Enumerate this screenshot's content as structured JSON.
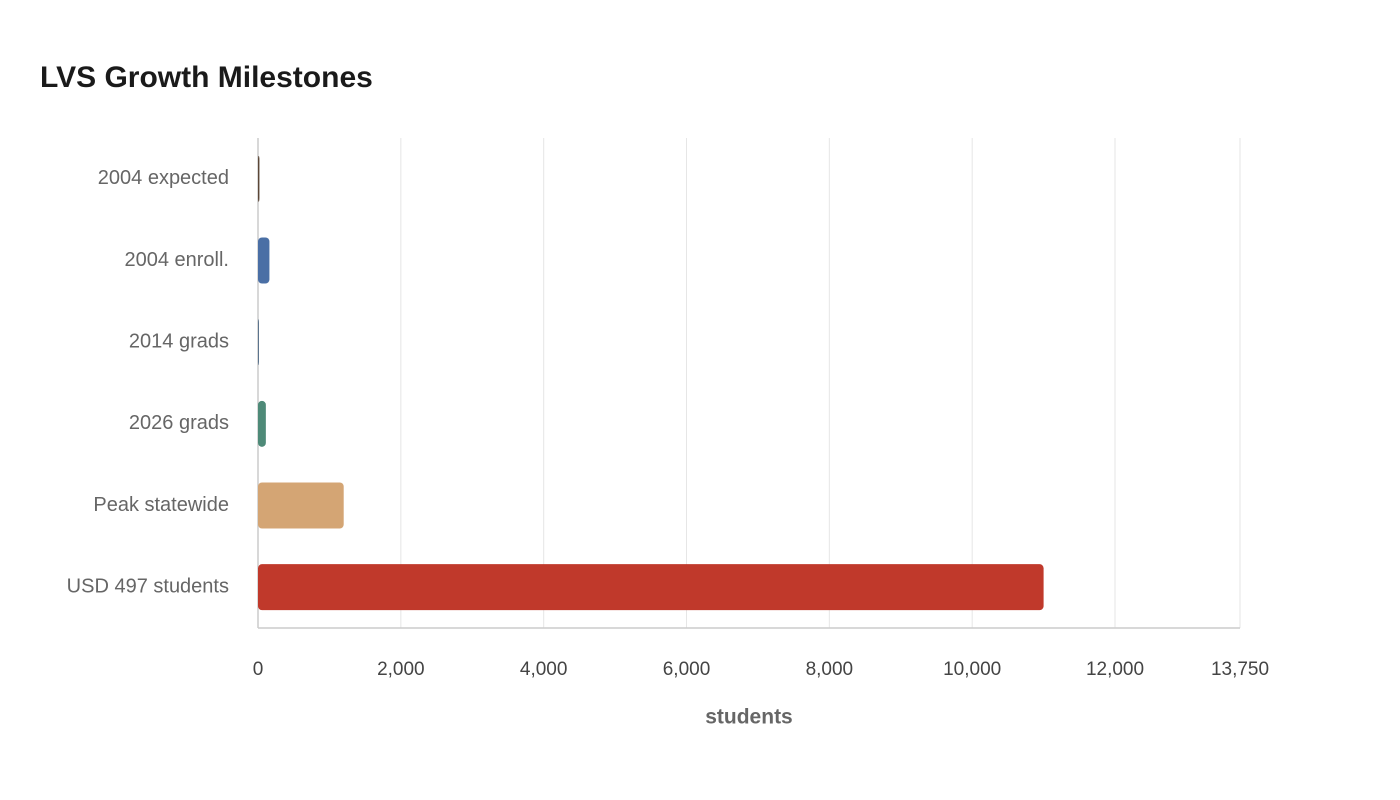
{
  "chart_data": {
    "type": "bar",
    "orientation": "horizontal",
    "title": "LVS Growth Milestones",
    "categories": [
      "2004 expected",
      "2004 enroll.",
      "2014 grads",
      "2026 grads",
      "Peak statewide",
      "USD 497 students"
    ],
    "values": [
      20,
      160,
      12,
      110,
      1200,
      11000
    ],
    "colors": [
      "#5b4636",
      "#4a6fa5",
      "#44607e",
      "#4e8a78",
      "#d4a574",
      "#c0392b"
    ],
    "x_label": "students",
    "xlim": [
      0,
      13750
    ],
    "xticks": [
      0,
      {
        "value": 2000,
        "label": "2,000"
      },
      {
        "value": 4000,
        "label": "4,000"
      },
      {
        "value": 6000,
        "label": "6,000"
      },
      {
        "value": 8000,
        "label": "8,000"
      },
      {
        "value": 10000,
        "label": "10,000"
      },
      {
        "value": 12000,
        "label": "12,000"
      },
      {
        "value": 13750,
        "label": "13,750"
      }
    ],
    "grid": true
  }
}
